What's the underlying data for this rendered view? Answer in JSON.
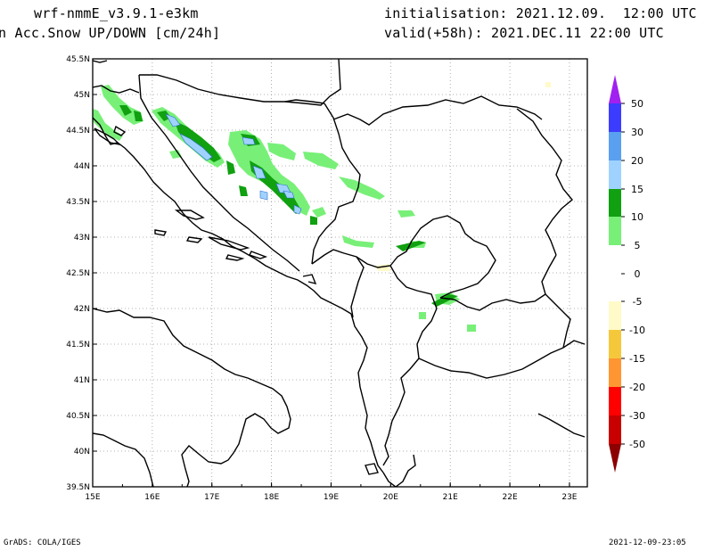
{
  "header": {
    "model": "wrf-nmmE_v3.9.1-e3km",
    "field": "n Acc.Snow UP/DOWN [cm/24h]",
    "init": "initialisation: 2021.12.09.  12:00 UTC",
    "valid": "valid(+58h): 2021.DEC.11 22:00 UTC"
  },
  "footer": {
    "left": "GrADS: COLA/IGES",
    "right": "2021-12-09-23:05"
  },
  "map": {
    "lon_labels": [
      "15E",
      "16E",
      "17E",
      "18E",
      "19E",
      "20E",
      "21E",
      "22E",
      "23E"
    ],
    "lat_labels": [
      "45.5N",
      "45N",
      "44.5N",
      "44N",
      "43.5N",
      "43N",
      "42.5N",
      "42N",
      "41.5N",
      "41N",
      "40.5N",
      "40N",
      "39.5N"
    ],
    "lon_range": [
      15,
      23.3
    ],
    "lat_range": [
      39.5,
      45.5
    ],
    "grid": "dotted"
  },
  "legend": {
    "labels": [
      "50",
      "30",
      "20",
      "15",
      "10",
      "5",
      "0",
      "-5",
      "-10",
      "-15",
      "-20",
      "-30",
      "-50"
    ],
    "colors": {
      "c50": "#a020f0",
      "c30": "#3c3cff",
      "c20": "#5aa0f0",
      "c15": "#a0d2ff",
      "c10": "#10a010",
      "c5": "#78f078",
      "c0": "#ffffff",
      "cm5": "#fffac8",
      "cm10": "#f5c83c",
      "cm15": "#ff9632",
      "cm20": "#ff0000",
      "cm30": "#c80000",
      "cm50": "#8c0000"
    }
  }
}
